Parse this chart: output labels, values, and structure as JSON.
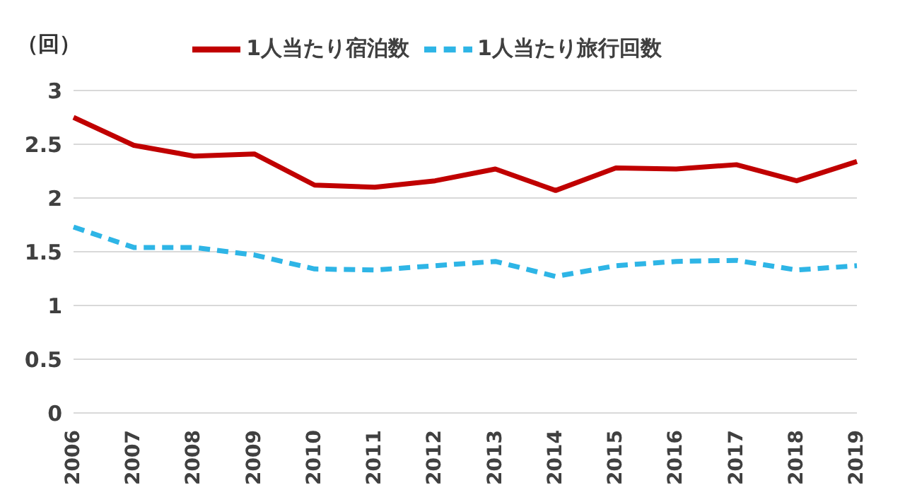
{
  "chart_data": {
    "type": "line",
    "ylabel": "（回）",
    "categories": [
      "2006",
      "2007",
      "2008",
      "2009",
      "2010",
      "2011",
      "2012",
      "2013",
      "2014",
      "2015",
      "2016",
      "2017",
      "2018",
      "2019"
    ],
    "series": [
      {
        "name": "1人当たり旅行回数",
        "color": "#2eb5e6",
        "line_style": "dashed",
        "values": [
          1.73,
          1.54,
          1.54,
          1.47,
          1.34,
          1.33,
          1.37,
          1.41,
          1.27,
          1.37,
          1.41,
          1.42,
          1.33,
          1.37
        ]
      },
      {
        "name": "1人当たり宿泊数",
        "color": "#c00000",
        "line_style": "solid",
        "values": [
          2.75,
          2.49,
          2.39,
          2.41,
          2.12,
          2.1,
          2.16,
          2.27,
          2.07,
          2.28,
          2.27,
          2.31,
          2.16,
          2.34
        ]
      }
    ],
    "ylim": [
      0,
      3
    ],
    "yticks": [
      0,
      0.5,
      1,
      1.5,
      2,
      2.5,
      3
    ],
    "grid": "y",
    "legend": "top",
    "marker": "none"
  }
}
